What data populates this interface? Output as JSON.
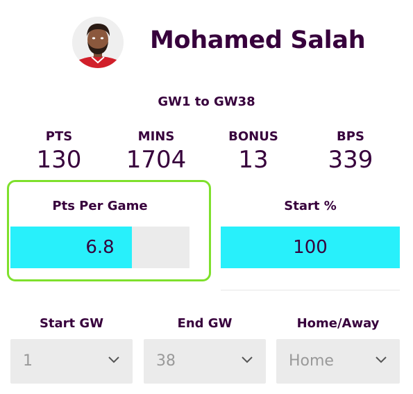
{
  "player": {
    "name": "Mohamed Salah"
  },
  "range_label": "GW1 to GW38",
  "stats": [
    {
      "label": "PTS",
      "value": "130"
    },
    {
      "label": "MINS",
      "value": "1704"
    },
    {
      "label": "BONUS",
      "value": "13"
    },
    {
      "label": "BPS",
      "value": "339"
    }
  ],
  "metrics": {
    "pts_per_game": {
      "label": "Pts Per Game",
      "value": "6.8",
      "fill_fraction": 0.68
    },
    "start_pct": {
      "label": "Start %",
      "value": "100",
      "fill_fraction": 1.0
    }
  },
  "filters": {
    "start_gw": {
      "label": "Start GW",
      "value": "1"
    },
    "end_gw": {
      "label": "End GW",
      "value": "38"
    },
    "home_away": {
      "label": "Home/Away",
      "value": "Home"
    }
  },
  "colors": {
    "text": "#37003c",
    "bar_fill": "#28f0fb",
    "bar_track": "#ebebeb",
    "highlight": "#7ee02c",
    "select_text": "#999999"
  }
}
